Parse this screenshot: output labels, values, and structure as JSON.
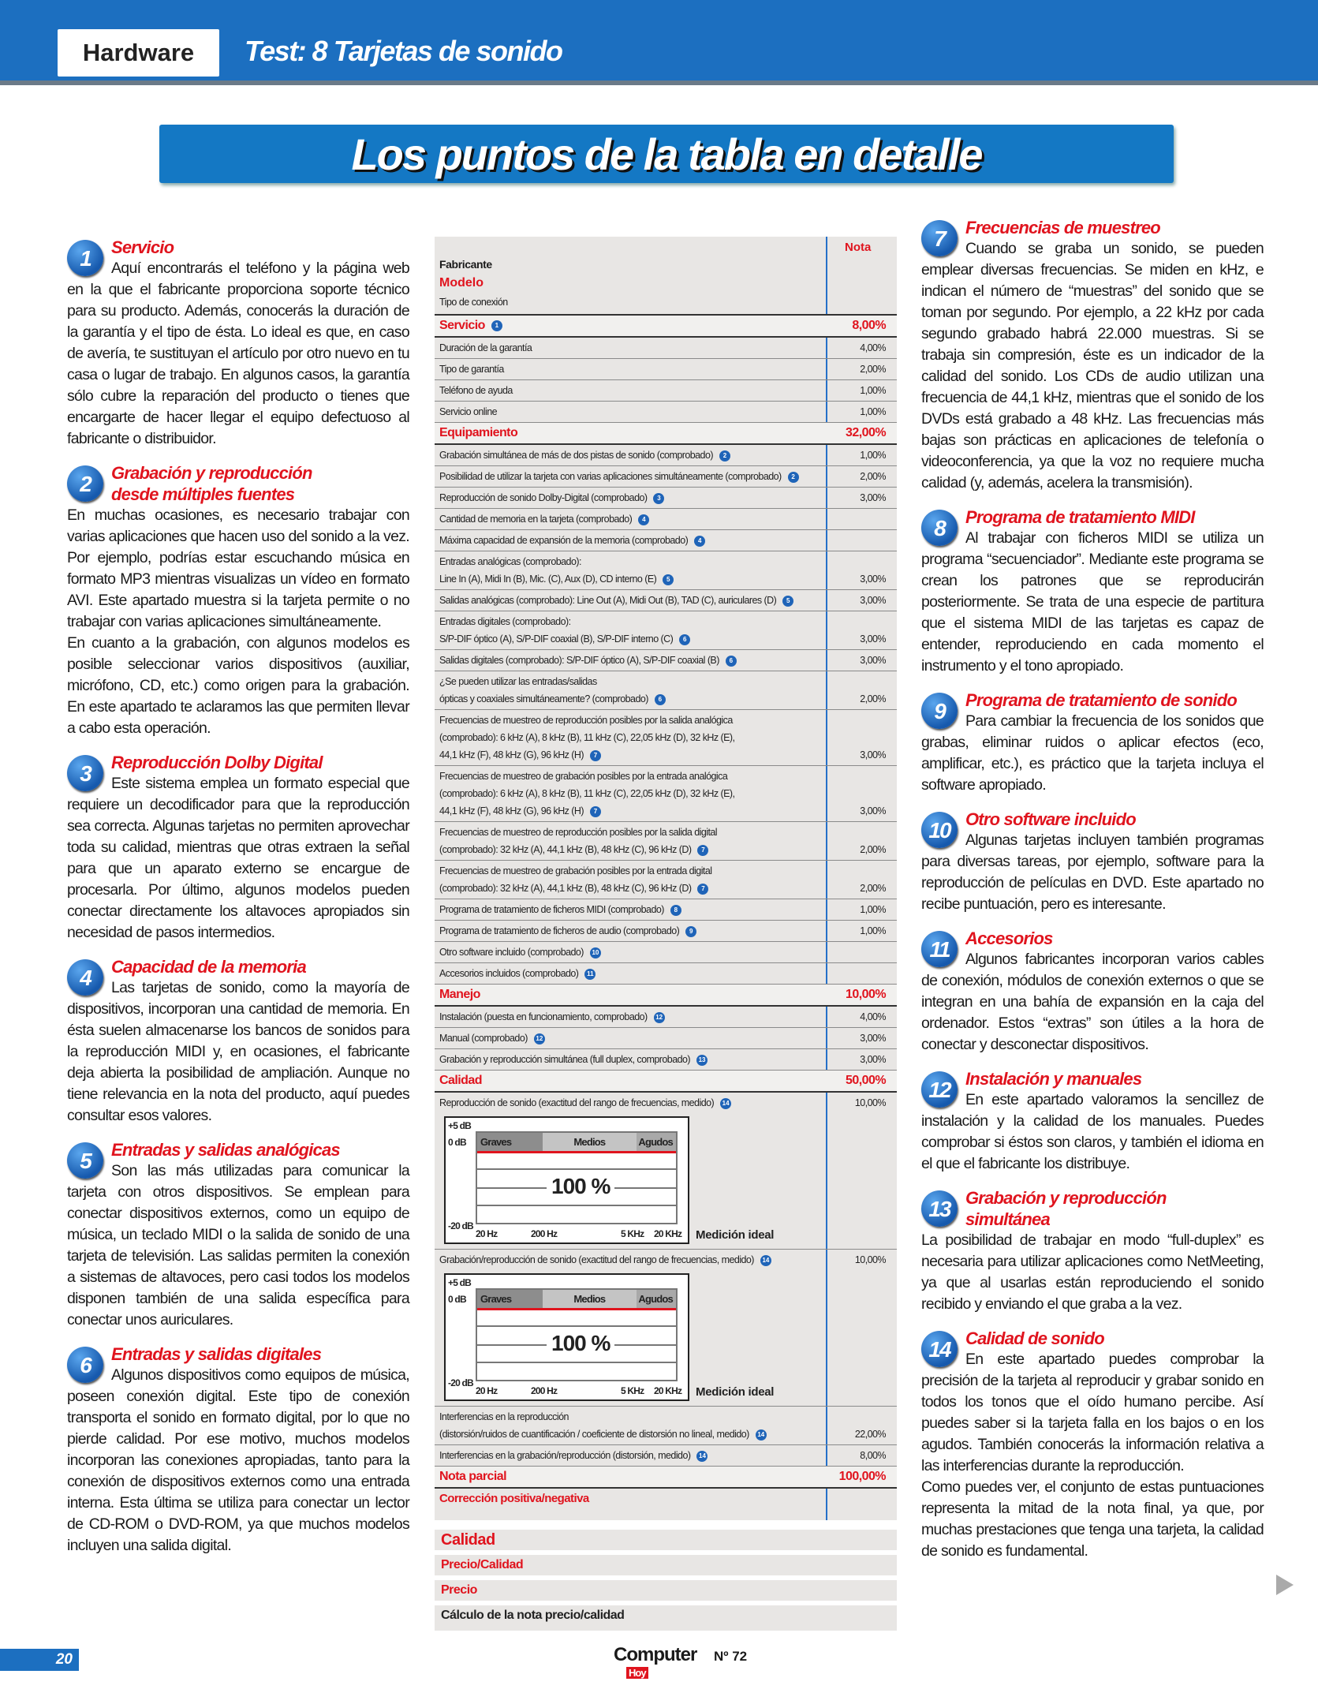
{
  "header": {
    "section": "Hardware",
    "title": "Test: 8 Tarjetas de sonido"
  },
  "banner": "Los puntos de la tabla en detalle",
  "left_sections": [
    {
      "num": "1",
      "title": [
        "Servicio"
      ],
      "paras": [
        "Aquí encontrarás el teléfono y la página web en la que el fabricante proporciona soporte técnico para su producto. Además, conocerás la duración de la garantía y el tipo de ésta. Lo ideal es que, en caso de avería, te sustituyan el artículo por otro nuevo en tu casa o lugar de trabajo. En algunos casos, la garantía sólo cubre la reparación del producto o tienes que encargarte de hacer llegar el equipo defectuoso al fabricante o distribuidor."
      ]
    },
    {
      "num": "2",
      "title": [
        "Grabación y reproducción",
        "desde múltiples fuentes"
      ],
      "full": true,
      "paras": [
        "En muchas ocasiones, es necesario trabajar con varias aplicaciones que hacen uso del sonido a la vez. Por ejemplo, podrías estar escuchando música en formato MP3 mientras visualizas un vídeo en formato AVI. Este apartado muestra si la tarjeta permite o no trabajar con varias aplicaciones simultáneamente.",
        "En cuanto a la grabación, con algunos modelos es posible seleccionar varios dispositivos (auxiliar, micrófono, CD, etc.) como origen para la grabación. En este apartado te aclaramos las que permiten llevar a cabo esta operación."
      ]
    },
    {
      "num": "3",
      "title": [
        "Reproducción Dolby Digital"
      ],
      "paras": [
        "Este sistema emplea un formato especial que requiere un decodificador para que la reproducción sea correcta. Algunas tarjetas no permiten aprovechar toda su calidad, mientras que otras extraen la señal para que un aparato externo se encargue de procesarla. Por último, algunos modelos pueden conectar directamente los altavoces apropiados sin necesidad de pasos intermedios."
      ]
    },
    {
      "num": "4",
      "title": [
        "Capacidad de la memoria"
      ],
      "paras": [
        "Las tarjetas de sonido, como la mayoría de dispositivos, incorporan una cantidad de memoria. En ésta suelen almacenarse los bancos de sonidos para la reproducción MIDI y, en ocasiones, el fabricante deja abierta la posibilidad de ampliación. Aunque no tiene relevancia en la nota del producto, aquí puedes consultar esos valores."
      ]
    },
    {
      "num": "5",
      "title": [
        "Entradas y salidas analógicas"
      ],
      "paras": [
        "Son las más utilizadas para comunicar la tarjeta con otros dispositivos. Se emplean para conectar dispositivos externos, como un equipo de música, un teclado MIDI o la salida de sonido de una tarjeta de televisión. Las salidas permiten la conexión a sistemas de altavoces, pero casi todos los modelos disponen también de una salida específica para conectar unos auriculares."
      ]
    },
    {
      "num": "6",
      "title": [
        "Entradas y salidas digitales"
      ],
      "paras": [
        "Algunos dispositivos como equipos de música, poseen conexión digital. Este tipo de conexión transporta el sonido en formato digital, por lo que no pierde calidad. Por ese motivo, muchos modelos incorporan las conexiones apropiadas, tanto para la conexión de dispositivos externos como una entrada interna. Esta última se utiliza para conectar un lector de CD-ROM o DVD-ROM, ya que muchos modelos incluyen una salida digital."
      ]
    }
  ],
  "right_sections": [
    {
      "num": "7",
      "title": [
        "Frecuencias de muestreo"
      ],
      "paras": [
        "Cuando se graba un sonido, se pueden emplear diversas frecuencias. Se miden en kHz, e indican el número de “muestras” del sonido que se toman por segundo. Por ejemplo, a 22 kHz por cada segundo grabado habrá 22.000 muestras. Si se trabaja sin compresión, éste es un indicador de la calidad del sonido. Los CDs de audio utilizan una frecuencia de 44,1 kHz, mientras que el sonido de los DVDs está grabado a 48 kHz. Las frecuencias más bajas son prácticas en aplicaciones de telefonía o videoconferencia, ya que la voz no requiere mucha calidad (y, además, acelera la transmisión)."
      ]
    },
    {
      "num": "8",
      "title": [
        "Programa de tratamiento MIDI"
      ],
      "paras": [
        "Al trabajar con ficheros MIDI se utiliza un programa “secuenciador”. Mediante este programa se crean los patrones que se reproducirán posteriormente. Se trata de una especie de partitura que el sistema MIDI de las tarjetas es capaz de entender, reproduciendo en cada momento el instrumento y el tono apropiado."
      ]
    },
    {
      "num": "9",
      "title": [
        "Programa de tratamiento de sonido"
      ],
      "paras": [
        "Para cambiar la frecuencia de los sonidos que grabas, eliminar ruidos o aplicar efectos (eco, amplificar, etc.), es práctico que la tarjeta incluya el software apropiado."
      ]
    },
    {
      "num": "10",
      "title": [
        "Otro software incluido"
      ],
      "paras": [
        "Algunas tarjetas incluyen también programas para diversas tareas, por ejemplo, software para la reproducción de películas en DVD. Este apartado no recibe puntuación, pero es interesante."
      ]
    },
    {
      "num": "11",
      "title": [
        "Accesorios"
      ],
      "paras": [
        "Algunos fabricantes incorporan varios cables de conexión, módulos de conexión externos o que se integran en una bahía de expansión en la caja del ordenador. Estos “extras” son útiles a la hora de conectar y desconectar dispositivos."
      ]
    },
    {
      "num": "12",
      "title": [
        "Instalación y manuales"
      ],
      "paras": [
        "En este apartado valoramos la sencillez de instalación y la calidad de los manuales. Puedes comprobar si éstos son claros, y también el idioma en el que el fabricante los distribuye."
      ]
    },
    {
      "num": "13",
      "title": [
        "Grabación y reproducción",
        "simultánea"
      ],
      "full": true,
      "paras": [
        "La posibilidad de trabajar en modo “full-duplex” es necesaria para utilizar aplicaciones como NetMeeting, ya que al usarlas están reproduciendo el sonido recibido y enviando el que graba a la vez."
      ]
    },
    {
      "num": "14",
      "title": [
        "Calidad de sonido"
      ],
      "paras": [
        "En este apartado puedes comprobar la precisión de la tarjeta al reproducir y grabar sonido en todos los tonos que el oído humano percibe. Así puedes saber si la tarjeta falla en los bajos o en los agudos. También conocerás la información relativa a las interferencias durante la reproducción.",
        "Como puedes ver, el conjunto de estas puntuaciones representa la mitad de la nota final, ya que, por muchas prestaciones que tenga una tarjeta, la calidad de sonido es fundamental."
      ]
    }
  ],
  "table": {
    "nota_header": "Nota",
    "fabricante": "Fabricante",
    "modelo": "Modelo",
    "tipo_conexion": "Tipo de conexión",
    "rows": [
      {
        "t": "section",
        "label": "Servicio",
        "badge": "1",
        "value": "8,00%"
      },
      {
        "t": "item",
        "label": "Duración de la garantía",
        "value": "4,00%"
      },
      {
        "t": "item",
        "label": "Tipo de garantía",
        "value": "2,00%"
      },
      {
        "t": "item",
        "label": "Teléfono de ayuda",
        "value": "1,00%"
      },
      {
        "t": "item",
        "label": "Servicio online",
        "value": "1,00%"
      },
      {
        "t": "section",
        "label": "Equipamiento",
        "value": "32,00%"
      },
      {
        "t": "item",
        "label": "Grabación simultánea de más de dos pistas de sonido (comprobado)",
        "badge": "2",
        "value": "1,00%"
      },
      {
        "t": "item",
        "label": "Posibilidad de utilizar la tarjeta con varias aplicaciones simultáneamente (comprobado)",
        "badge": "2",
        "value": "2,00%"
      },
      {
        "t": "item",
        "label": "Reproducción de sonido Dolby-Digital (comprobado)",
        "badge": "3",
        "value": "3,00%"
      },
      {
        "t": "item",
        "label": "Cantidad de memoria en la tarjeta (comprobado)",
        "badge": "4",
        "value": ""
      },
      {
        "t": "item",
        "label": "Máxima capacidad de expansión de la memoria (comprobado)",
        "badge": "4",
        "value": ""
      },
      {
        "t": "item",
        "pre": "Entradas analógicas (comprobado):",
        "label": "Line In (A), Midi In (B), Mic. (C), Aux  (D), CD interno (E)",
        "badge": "5",
        "value": "3,00%"
      },
      {
        "t": "item",
        "label": "Salidas analógicas (comprobado): Line Out (A), Midi Out (B), TAD (C), auriculares (D)",
        "badge": "5",
        "value": "3,00%"
      },
      {
        "t": "item",
        "pre": "Entradas digitales (comprobado):",
        "label": "S/P-DIF óptico (A), S/P-DIF coaxial (B), S/P-DIF interno (C)",
        "badge": "6",
        "value": "3,00%"
      },
      {
        "t": "item",
        "label": "Salidas digitales (comprobado): S/P-DIF óptico (A), S/P-DIF coaxial (B)",
        "badge": "6",
        "value": "3,00%"
      },
      {
        "t": "item",
        "pre": "¿Se pueden utilizar las entradas/salidas",
        "label": "ópticas y coaxiales simultáneamente? (comprobado)",
        "badge": "6",
        "value": "2,00%"
      },
      {
        "t": "item",
        "pre": "Frecuencias de muestreo de reproducción posibles por la salida analógica",
        "pre2": "(comprobado): 6 kHz (A), 8 kHz (B), 11 kHz (C), 22,05 kHz (D), 32 kHz (E),",
        "label": "44,1 kHz (F), 48 kHz (G), 96 kHz (H)",
        "badge": "7",
        "value": "3,00%"
      },
      {
        "t": "item",
        "pre": "Frecuencias de muestreo de grabación posibles por la entrada analógica",
        "pre2": "(comprobado): 6 kHz (A), 8 kHz (B), 11 kHz (C), 22,05 kHz (D), 32 kHz (E),",
        "label": "44,1 kHz (F), 48 kHz (G), 96 kHz (H)",
        "badge": "7",
        "value": "3,00%"
      },
      {
        "t": "item",
        "pre": "Frecuencias de muestreo de reproducción posibles por la salida digital",
        "label": "(comprobado): 32 kHz (A), 44,1 kHz (B), 48 kHz (C), 96 kHz (D)",
        "badge": "7",
        "value": "2,00%"
      },
      {
        "t": "item",
        "pre": "Frecuencias de muestreo de grabación posibles por la entrada digital",
        "label": "(comprobado): 32 kHz (A), 44,1 kHz (B), 48 kHz (C), 96 kHz (D)",
        "badge": "7",
        "value": "2,00%"
      },
      {
        "t": "item",
        "label": "Programa de tratamiento de ficheros MIDI (comprobado)",
        "badge": "8",
        "value": "1,00%"
      },
      {
        "t": "item",
        "label": "Programa de tratamiento de ficheros de audio (comprobado)",
        "badge": "9",
        "value": "1,00%"
      },
      {
        "t": "item",
        "label": "Otro software incluido (comprobado)",
        "badge": "10",
        "value": ""
      },
      {
        "t": "item",
        "label": "Accesorios incluidos (comprobado)",
        "badge": "11",
        "value": ""
      },
      {
        "t": "section",
        "label": "Manejo",
        "value": "10,00%"
      },
      {
        "t": "item",
        "label": "Instalación (puesta en funcionamiento, comprobado)",
        "badge": "12",
        "value": "4,00%"
      },
      {
        "t": "item",
        "label": "Manual (comprobado)",
        "badge": "12",
        "value": "3,00%"
      },
      {
        "t": "item",
        "label": "Grabación y reproducción simultánea (full duplex, comprobado)",
        "badge": "13",
        "value": "3,00%"
      },
      {
        "t": "section",
        "label": "Calidad",
        "value": "50,00%"
      },
      {
        "t": "chart",
        "label": "Reproducción de sonido (exactitud del rango de frecuencias, medido)",
        "badge": "14",
        "value": "10,00%"
      },
      {
        "t": "chart",
        "label": "Grabación/reproducción de sonido (exactitud del rango de frecuencias, medido)",
        "badge": "14",
        "value": "10,00%"
      },
      {
        "t": "item",
        "pre": "Interferencias en la reproducción",
        "label": "(distorsión/ruidos de cuantificación / coeficiente de distorsión no lineal, medido)",
        "badge": "14",
        "value": "22,00%"
      },
      {
        "t": "item",
        "label": "Interferencias en la grabación/reproducción (distorsión, medido)",
        "badge": "14",
        "value": "8,00%"
      },
      {
        "t": "section",
        "label": "Nota parcial",
        "value": "100,00%"
      },
      {
        "t": "plain",
        "label": "Corrección positiva/negativa",
        "value": ""
      }
    ],
    "chart": {
      "bands": [
        "Graves",
        "Medios",
        "Agudos"
      ],
      "y_labels": [
        "+5 dB",
        "0 dB",
        "-20 dB"
      ],
      "x_labels": [
        "20 Hz",
        "200 Hz",
        "5 KHz",
        "20 KHz"
      ],
      "percent": "100 %",
      "caption": "Medición ideal"
    },
    "summary": [
      "Calidad",
      "Precio/Calidad",
      "Precio",
      "Cálculo de la nota precio/calidad"
    ]
  },
  "footer": {
    "page": "20",
    "logo_main": "Computer",
    "logo_sub": "Hoy",
    "issue": "Nº 72"
  },
  "colors": {
    "brand_blue": "#1c6fc0",
    "accent_red": "#e0141e",
    "table_bg": "#e8e6e4"
  }
}
